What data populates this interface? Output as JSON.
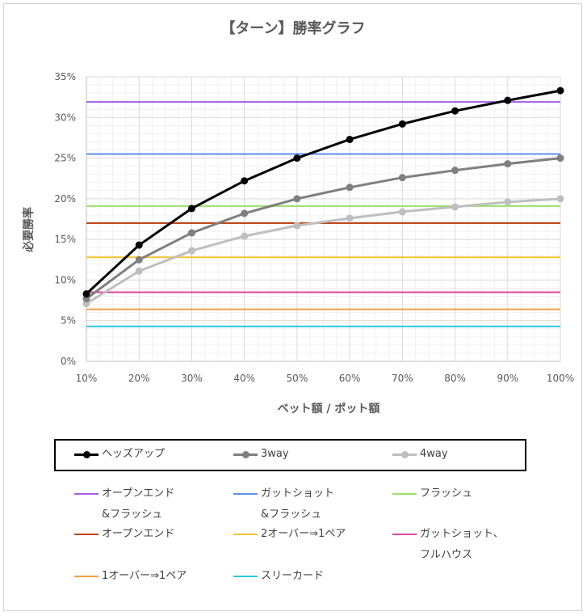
{
  "chart_data": {
    "type": "line",
    "title": "【ターン】勝率グラフ",
    "xlabel": "ベット額 / ポット額",
    "ylabel": "必要勝率",
    "x": [
      "10%",
      "20%",
      "30%",
      "40%",
      "50%",
      "60%",
      "70%",
      "80%",
      "90%",
      "100%"
    ],
    "x_values": [
      10,
      20,
      30,
      40,
      50,
      60,
      70,
      80,
      90,
      100
    ],
    "xlim": [
      10,
      100
    ],
    "ylim": [
      0,
      35
    ],
    "y_ticks": [
      "0%",
      "5%",
      "10%",
      "15%",
      "20%",
      "25%",
      "30%",
      "35%"
    ],
    "y_tick_values": [
      0,
      5,
      10,
      15,
      20,
      25,
      30,
      35
    ],
    "grid": true,
    "legend_position": "bottom",
    "series": [
      {
        "name": "ヘッズアップ",
        "color": "#000000",
        "markers": true,
        "values": [
          8.3,
          14.3,
          18.8,
          22.2,
          25.0,
          27.3,
          29.2,
          30.8,
          32.1,
          33.3
        ]
      },
      {
        "name": "3way",
        "color": "#7f7f7f",
        "markers": true,
        "values": [
          7.7,
          12.5,
          15.8,
          18.2,
          20.0,
          21.4,
          22.6,
          23.5,
          24.3,
          25.0
        ]
      },
      {
        "name": "4way",
        "color": "#bfbfbf",
        "markers": true,
        "values": [
          7.1,
          11.1,
          13.6,
          15.4,
          16.7,
          17.6,
          18.4,
          19.0,
          19.6,
          20.0
        ]
      }
    ],
    "reference_lines": [
      {
        "name": "オープンエンド\n&フラッシュ",
        "value": 31.9,
        "color": "#a65ee8"
      },
      {
        "name": "ガットショット\n&フラッシュ",
        "value": 25.5,
        "color": "#5b8ff2"
      },
      {
        "name": "フラッシュ",
        "value": 19.1,
        "color": "#99e26a"
      },
      {
        "name": "オープンエンド",
        "value": 17.0,
        "color": "#c0461d"
      },
      {
        "name": "2オーバー⇒1ペア",
        "value": 12.8,
        "color": "#f4c430"
      },
      {
        "name": "ガットショット、\nフルハウス",
        "value": 8.5,
        "color": "#d94a9a"
      },
      {
        "name": "1オーバー⇒1ペア",
        "value": 6.4,
        "color": "#f6a040"
      },
      {
        "name": "スリーカード",
        "value": 4.3,
        "color": "#2ec6e0"
      }
    ]
  }
}
